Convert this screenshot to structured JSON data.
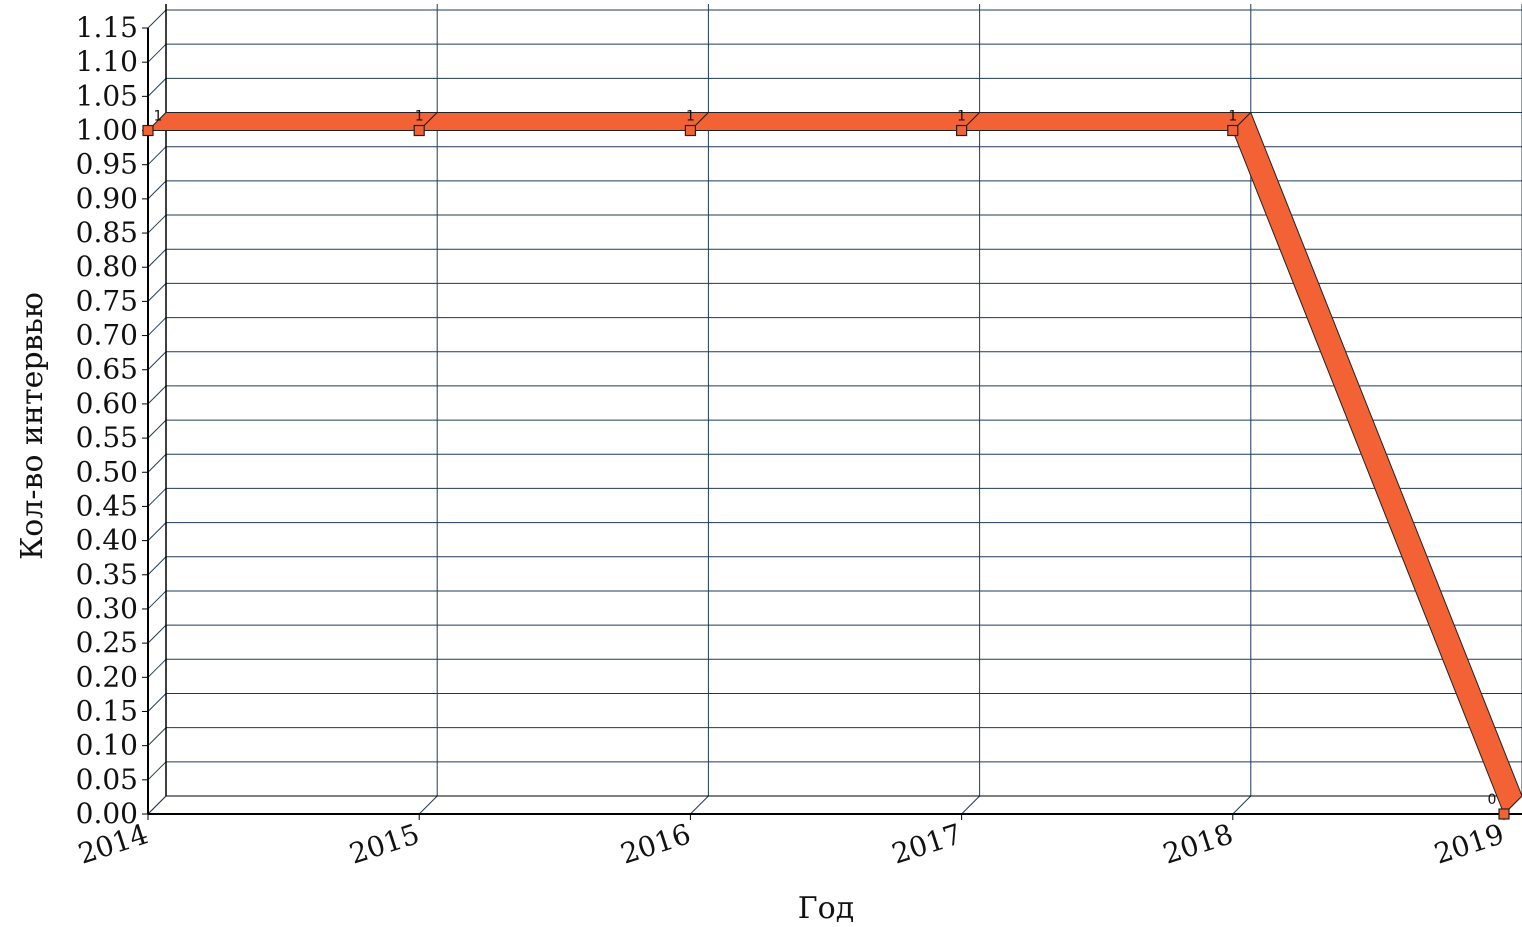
{
  "chart_data": {
    "type": "line",
    "title": "",
    "xlabel": "Год",
    "ylabel": "Кол-во интервью",
    "categories": [
      "2014",
      "2015",
      "2016",
      "2017",
      "2018",
      "2019"
    ],
    "values": [
      1,
      1,
      1,
      1,
      1,
      0
    ],
    "data_labels": [
      "1",
      "1",
      "1",
      "1",
      "1",
      "0"
    ],
    "ylim": [
      0,
      1.15
    ],
    "yticks": [
      "0.00",
      "0.05",
      "0.10",
      "0.15",
      "0.20",
      "0.25",
      "0.30",
      "0.35",
      "0.40",
      "0.45",
      "0.50",
      "0.55",
      "0.60",
      "0.65",
      "0.70",
      "0.75",
      "0.80",
      "0.85",
      "0.90",
      "0.95",
      "1.00",
      "1.05",
      "1.10",
      "1.15"
    ],
    "grid": true,
    "style": "3d",
    "line_color": "#f26235",
    "grid_color": "#1f3a5a",
    "axis_color": "#000000"
  }
}
